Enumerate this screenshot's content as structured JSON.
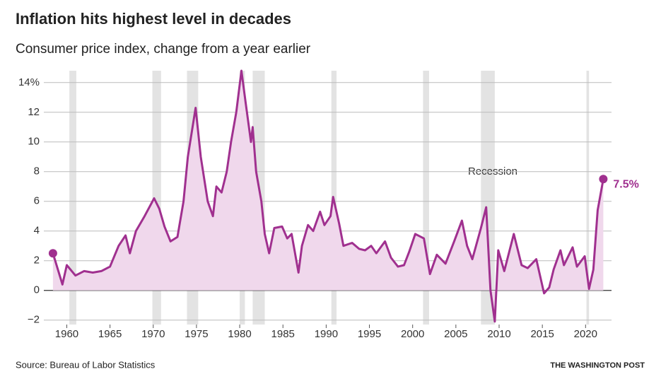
{
  "chart_data": {
    "type": "line",
    "title": "Inflation hits highest level in decades",
    "subtitle": "Consumer price index, change from a year earlier",
    "source": "Source: Bureau of Labor Statistics",
    "credit": "THE WASHINGTON POST",
    "recession_label": "Recession",
    "recession_color": "#e3e3e3",
    "recessions": [
      [
        1960.3,
        1961.1
      ],
      [
        1969.9,
        1970.9
      ],
      [
        1973.9,
        1975.2
      ],
      [
        1980.0,
        1980.6
      ],
      [
        1981.5,
        1982.9
      ],
      [
        1990.6,
        1991.2
      ],
      [
        2001.2,
        2001.9
      ],
      [
        2007.9,
        2009.5
      ],
      [
        2020.1,
        2020.4
      ]
    ],
    "xlim": [
      1958,
      2023
    ],
    "xticks": [
      1960,
      1965,
      1970,
      1975,
      1980,
      1985,
      1990,
      1995,
      2000,
      2005,
      2010,
      2015,
      2020
    ],
    "ylim": [
      -2.3,
      14.8
    ],
    "yticks": [
      {
        "value": -2,
        "label": "−2"
      },
      0,
      2,
      4,
      6,
      8,
      10,
      12,
      {
        "value": 14,
        "label": "14%"
      }
    ],
    "grid": true,
    "series": [
      {
        "name": "Consumer price index",
        "color": "#a0308f",
        "fill": "#f0d8ec",
        "x": [
          1958.4,
          1959.5,
          1960.0,
          1961.0,
          1962.0,
          1963.0,
          1964.0,
          1965.0,
          1966.0,
          1966.8,
          1967.3,
          1968.0,
          1969.0,
          1970.1,
          1970.7,
          1971.3,
          1972.0,
          1972.8,
          1973.5,
          1974.0,
          1974.9,
          1975.5,
          1976.3,
          1976.9,
          1977.3,
          1977.9,
          1978.5,
          1979.0,
          1979.6,
          1980.2,
          1980.7,
          1981.3,
          1981.5,
          1981.9,
          1982.5,
          1982.9,
          1983.4,
          1984.0,
          1984.9,
          1985.5,
          1986.0,
          1986.8,
          1987.2,
          1987.9,
          1988.5,
          1989.3,
          1989.8,
          1990.5,
          1990.8,
          1991.5,
          1992.0,
          1993.0,
          1993.8,
          1994.5,
          1995.2,
          1995.8,
          1996.8,
          1997.5,
          1998.3,
          1999.0,
          1999.6,
          2000.3,
          2001.3,
          2002.0,
          2002.8,
          2003.8,
          2004.8,
          2005.7,
          2006.3,
          2006.9,
          2007.9,
          2008.5,
          2009.0,
          2009.5,
          2009.9,
          2010.6,
          2011.7,
          2012.6,
          2013.3,
          2014.3,
          2015.2,
          2015.8,
          2016.3,
          2017.1,
          2017.5,
          2018.5,
          2019.0,
          2019.9,
          2020.4,
          2020.9,
          2021.4,
          2021.9,
          2022.05
        ],
        "values": [
          2.5,
          0.4,
          1.7,
          1.0,
          1.3,
          1.2,
          1.3,
          1.6,
          3.0,
          3.7,
          2.5,
          4.0,
          5.0,
          6.2,
          5.5,
          4.3,
          3.3,
          3.6,
          6.0,
          9.0,
          12.3,
          9.0,
          6.0,
          5.0,
          7.0,
          6.6,
          8.0,
          10.0,
          12.0,
          14.8,
          12.6,
          10.0,
          11.0,
          8.0,
          6.0,
          3.8,
          2.5,
          4.2,
          4.3,
          3.5,
          3.8,
          1.2,
          3.0,
          4.4,
          4.0,
          5.3,
          4.4,
          5.0,
          6.3,
          4.5,
          3.0,
          3.2,
          2.8,
          2.7,
          3.0,
          2.5,
          3.3,
          2.2,
          1.6,
          1.7,
          2.6,
          3.8,
          3.5,
          1.1,
          2.4,
          1.8,
          3.3,
          4.7,
          3.0,
          2.1,
          4.2,
          5.6,
          0,
          -2.1,
          2.7,
          1.3,
          3.8,
          1.7,
          1.5,
          2.1,
          -0.2,
          0.2,
          1.4,
          2.7,
          1.7,
          2.9,
          1.6,
          2.3,
          0.1,
          1.4,
          5.4,
          7.0,
          7.5
        ],
        "value_labels": [
          null,
          null,
          null,
          null,
          null,
          null,
          null,
          null,
          null,
          null,
          null,
          null,
          null,
          null,
          null,
          null,
          null,
          null,
          null,
          null,
          null,
          null,
          null,
          null,
          null,
          null,
          null,
          null,
          null,
          null,
          null,
          null,
          null,
          null,
          null,
          null,
          null,
          null,
          null,
          null,
          null,
          null,
          null,
          null,
          null,
          null,
          null,
          null,
          null,
          null,
          null,
          null,
          null,
          null,
          null,
          null,
          null,
          null,
          null,
          null,
          null,
          null,
          null,
          null,
          null,
          null,
          null,
          null,
          null,
          null,
          null,
          null,
          null,
          null,
          null,
          null,
          null,
          null,
          null,
          null,
          null,
          null,
          null,
          null,
          null,
          null,
          null,
          null,
          null,
          null,
          null,
          null,
          "7.5%"
        ]
      }
    ]
  }
}
